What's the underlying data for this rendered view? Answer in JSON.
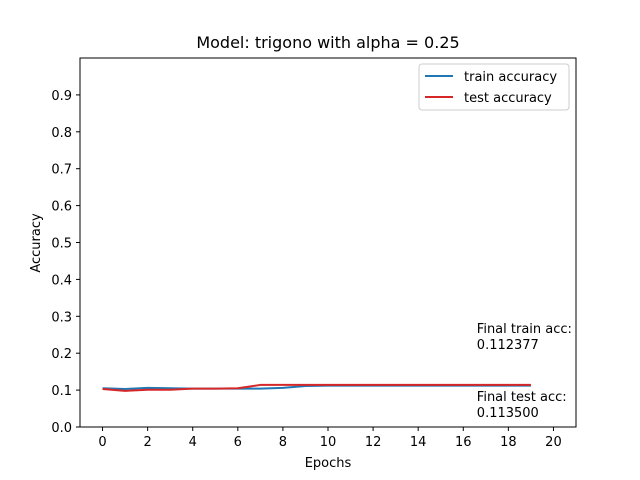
{
  "chart_data": {
    "type": "line",
    "title": "Model: trigono with alpha = 0.25",
    "xlabel": "Epochs",
    "ylabel": "Accuracy",
    "xlim": [
      -1,
      21
    ],
    "ylim": [
      0,
      1
    ],
    "xticks": [
      0,
      2,
      4,
      6,
      8,
      10,
      12,
      14,
      16,
      18,
      20
    ],
    "yticks": [
      0.0,
      0.1,
      0.2,
      0.3,
      0.4,
      0.5,
      0.6,
      0.7,
      0.8,
      0.9
    ],
    "xtick_labels": [
      "0",
      "2",
      "4",
      "6",
      "8",
      "10",
      "12",
      "14",
      "16",
      "18",
      "20"
    ],
    "ytick_labels": [
      "0.0",
      "0.1",
      "0.2",
      "0.3",
      "0.4",
      "0.5",
      "0.6",
      "0.7",
      "0.8",
      "0.9"
    ],
    "grid": false,
    "legend_position": "top-right",
    "x": [
      0,
      1,
      2,
      3,
      4,
      5,
      6,
      7,
      8,
      9,
      10,
      11,
      12,
      13,
      14,
      15,
      16,
      17,
      18,
      19
    ],
    "series": [
      {
        "name": "train accuracy",
        "color": "#1f77b4",
        "values": [
          0.105,
          0.103,
          0.106,
          0.105,
          0.104,
          0.104,
          0.104,
          0.104,
          0.106,
          0.111,
          0.112,
          0.112,
          0.112,
          0.112,
          0.112,
          0.112,
          0.112,
          0.112,
          0.112,
          0.112
        ]
      },
      {
        "name": "test accuracy",
        "color": "#d62728",
        "values": [
          0.103,
          0.098,
          0.101,
          0.101,
          0.104,
          0.104,
          0.105,
          0.114,
          0.114,
          0.114,
          0.114,
          0.114,
          0.114,
          0.114,
          0.114,
          0.114,
          0.114,
          0.114,
          0.114,
          0.114
        ]
      }
    ],
    "annotations": [
      {
        "lines": [
          "Final train acc:",
          "0.112377"
        ],
        "x": 16.6,
        "y": 0.255
      },
      {
        "lines": [
          "Final test acc:",
          "0.113500"
        ],
        "x": 16.6,
        "y": 0.07
      }
    ]
  }
}
